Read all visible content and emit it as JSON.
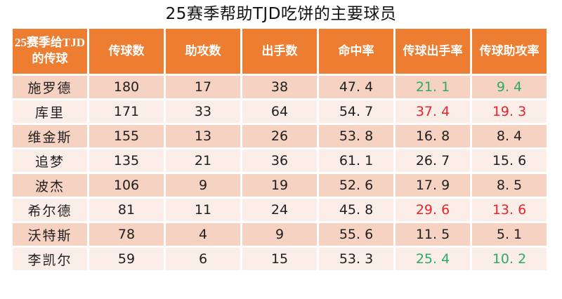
{
  "title": "25赛季帮助TJD吃饼的主要球员",
  "colors": {
    "header_bg": "#ED7D31",
    "header_text": "#FFFFFF",
    "row_band_dark": "#F6D2C2",
    "row_band_light": "#FBEDE8",
    "body_text": "#1F1F1F",
    "highlight_green": "#2BAA66",
    "highlight_red": "#E9242A"
  },
  "table": {
    "headers": [
      "25赛季给TJD的传球",
      "传球数",
      "助攻数",
      "出手数",
      "命中率",
      "传球出手率",
      "传球助攻率"
    ],
    "rows": [
      {
        "name": "施罗德",
        "values": [
          "180",
          "17",
          "38",
          "47. 4",
          "21. 1",
          "9. 4"
        ],
        "highlight": "green"
      },
      {
        "name": "库里",
        "values": [
          "171",
          "33",
          "64",
          "54. 7",
          "37. 4",
          "19. 3"
        ],
        "highlight": "red"
      },
      {
        "name": "维金斯",
        "values": [
          "155",
          "13",
          "26",
          "53. 8",
          "16. 8",
          "8. 4"
        ],
        "highlight": "none"
      },
      {
        "name": "追梦",
        "values": [
          "135",
          "21",
          "36",
          "61. 1",
          "26. 7",
          "15. 6"
        ],
        "highlight": "none"
      },
      {
        "name": "波杰",
        "values": [
          "106",
          "9",
          "19",
          "52. 6",
          "17. 9",
          "8. 5"
        ],
        "highlight": "none"
      },
      {
        "name": "希尔德",
        "values": [
          "81",
          "11",
          "24",
          "45. 8",
          "29. 6",
          "13. 6"
        ],
        "highlight": "red"
      },
      {
        "name": "沃特斯",
        "values": [
          "78",
          "4",
          "9",
          "55. 6",
          "11. 5",
          "5. 1"
        ],
        "highlight": "none"
      },
      {
        "name": "李凯尔",
        "values": [
          "59",
          "6",
          "15",
          "53. 3",
          "25. 4",
          "10. 2"
        ],
        "highlight": "green"
      }
    ]
  }
}
